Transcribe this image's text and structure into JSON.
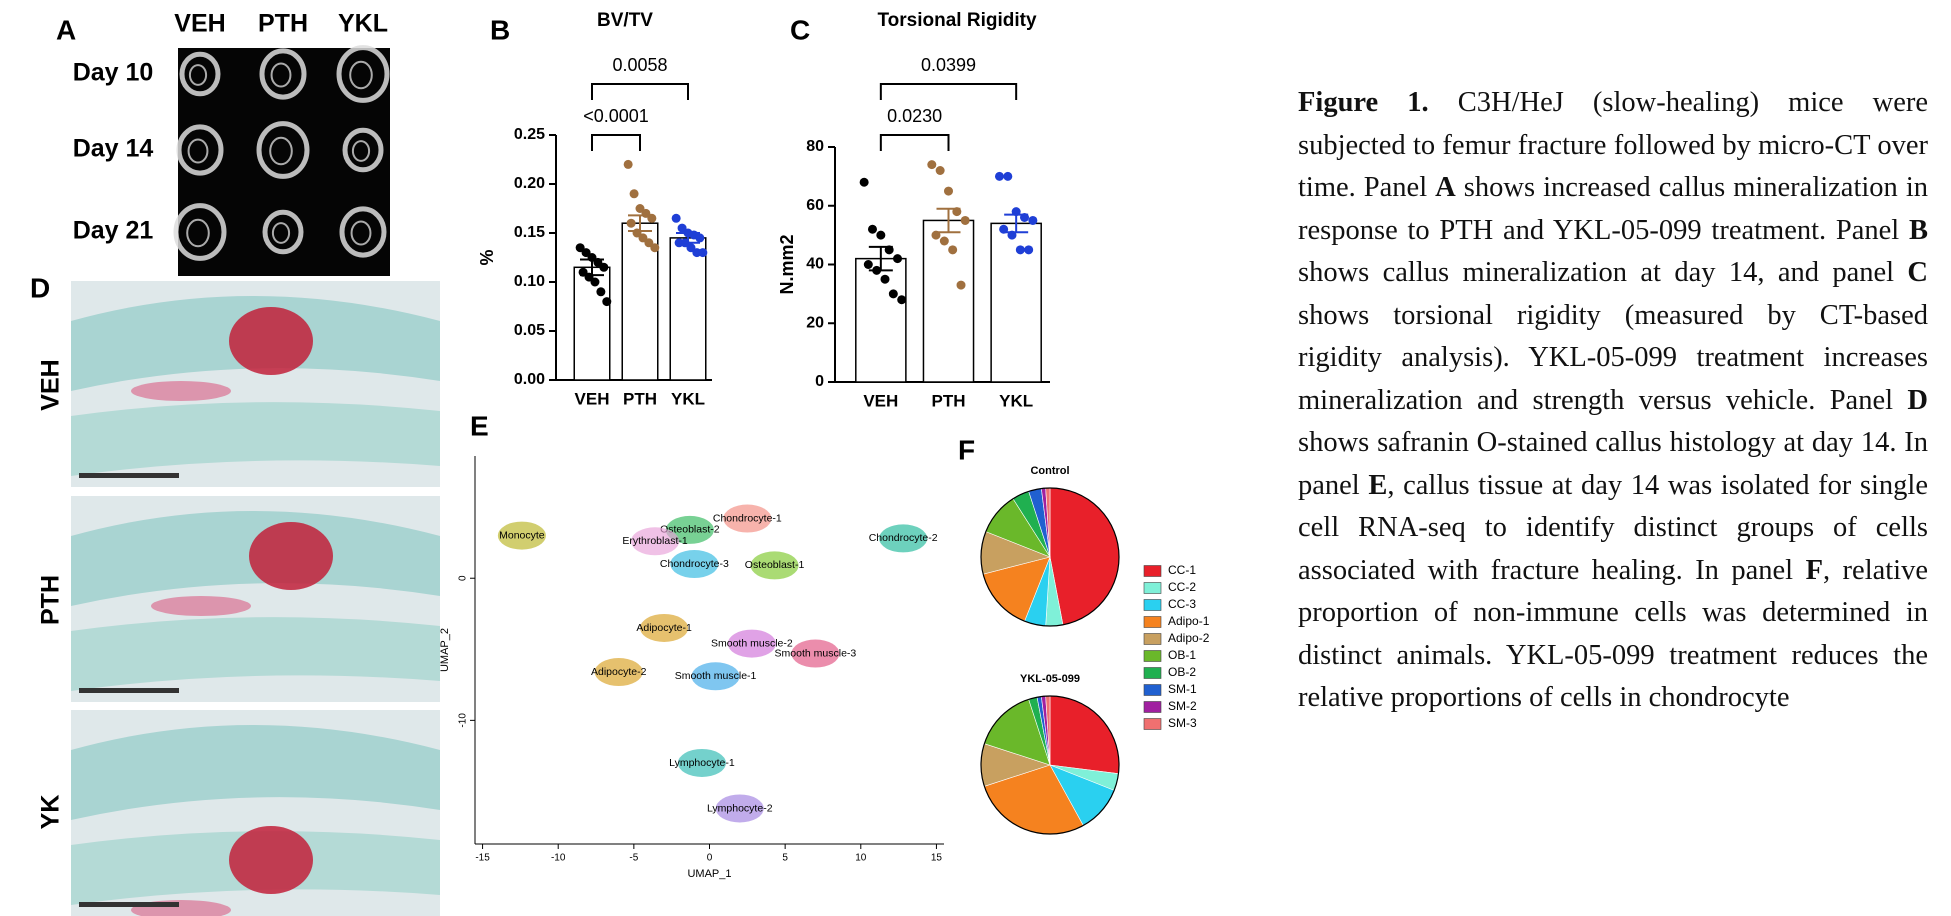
{
  "panel_a": {
    "label": "A",
    "columns": [
      "VEH",
      "PTH",
      "YKL"
    ],
    "rows": [
      "Day 10",
      "Day 14",
      "Day 21"
    ]
  },
  "panel_d": {
    "label": "D",
    "rows": [
      "VEH",
      "PTH",
      "YK"
    ]
  },
  "chart_data": [
    {
      "type": "bar",
      "panel": "B",
      "title": "BV/TV",
      "y_label": "%",
      "categories": [
        "VEH",
        "PTH",
        "YKL"
      ],
      "values": [
        0.115,
        0.16,
        0.145
      ],
      "errors": [
        0.008,
        0.008,
        0.005
      ],
      "colors": [
        "#000000",
        "#a0703f",
        "#1f3fd6"
      ],
      "points": [
        [
          0.135,
          0.13,
          0.125,
          0.12,
          0.115,
          0.11,
          0.105,
          0.1,
          0.09,
          0.08
        ],
        [
          0.22,
          0.19,
          0.175,
          0.17,
          0.165,
          0.16,
          0.15,
          0.145,
          0.14,
          0.135
        ],
        [
          0.165,
          0.155,
          0.15,
          0.148,
          0.145,
          0.14,
          0.14,
          0.135,
          0.13,
          0.13
        ]
      ],
      "ylim": [
        0,
        0.25
      ],
      "yticks": [
        {
          "value": 0,
          "label": "0.00"
        },
        0.05,
        {
          "value": 0.1,
          "label": "0.10"
        },
        0.15,
        {
          "value": 0.2,
          "label": "0.20"
        },
        0.25
      ],
      "annotations": [
        {
          "text": "<0.0001",
          "from": "VEH",
          "to": "PTH"
        },
        {
          "text": "0.0058",
          "from": "VEH",
          "to": "YKL"
        }
      ]
    },
    {
      "type": "bar",
      "panel": "C",
      "title": "Torsional Rigidity",
      "y_label": "N.mm2",
      "categories": [
        "VEH",
        "PTH",
        "YKL"
      ],
      "values": [
        42,
        55,
        54
      ],
      "errors": [
        4,
        4,
        3
      ],
      "colors": [
        "#000000",
        "#a0703f",
        "#1f3fd6"
      ],
      "points": [
        [
          68,
          52,
          50,
          45,
          42,
          40,
          38,
          35,
          30,
          28
        ],
        [
          74,
          72,
          65,
          58,
          55,
          50,
          48,
          45,
          33
        ],
        [
          70,
          70,
          58,
          56,
          55,
          52,
          50,
          45,
          45
        ]
      ],
      "ylim": [
        0,
        80
      ],
      "yticks": [
        0,
        20,
        40,
        60,
        80
      ],
      "annotations": [
        {
          "text": "0.0230",
          "from": "VEH",
          "to": "PTH"
        },
        {
          "text": "0.0399",
          "from": "VEH",
          "to": "YKL"
        }
      ]
    },
    {
      "type": "scatter",
      "panel": "E",
      "x_label": "UMAP_1",
      "y_label": "UMAP_2",
      "labels": [
        "Monocyte",
        "Chondrocyte-1",
        "Osteoblast-2",
        "Erythroblast-1",
        "Chondrocyte-3",
        "Osteoblast-1",
        "Chondrocyte-2",
        "Adipocyte-1",
        "Adipocyte-2",
        "Smooth muscle-2",
        "Smooth muscle-1",
        "Smooth muscle-3",
        "Lymphocyte-1",
        "Lymphocyte-2"
      ],
      "x": [
        -12.4,
        2.5,
        -1.3,
        -3.6,
        -1.0,
        4.3,
        12.8,
        -3.0,
        -6.0,
        2.8,
        0.4,
        7.0,
        -0.5,
        2.0
      ],
      "y": [
        3.0,
        4.2,
        3.4,
        2.6,
        1.0,
        0.9,
        2.8,
        -3.5,
        -6.6,
        -4.6,
        -6.9,
        -5.3,
        -13.0,
        -16.2
      ],
      "colors": [
        "#b8b322",
        "#f28a80",
        "#2fb85a",
        "#e8a0d8",
        "#2eb8e0",
        "#7cc82a",
        "#1fb89a",
        "#d9a020",
        "#d9a020",
        "#d070d8",
        "#3aa8e8",
        "#e05080",
        "#2ab8b0",
        "#a080e0"
      ],
      "xlim": [
        -15.5,
        15.5
      ],
      "ylim": [
        -18.7,
        8.6
      ],
      "xticks": [
        -15,
        -10,
        -5,
        0,
        5,
        10,
        15
      ],
      "yticks": [
        0,
        -10
      ]
    },
    {
      "type": "pie",
      "panel": "F",
      "categories": [
        "CC-1",
        "CC-2",
        "CC-3",
        "Adipo-1",
        "Adipo-2",
        "OB-1",
        "OB-2",
        "SM-1",
        "SM-2",
        "SM-3"
      ],
      "colors": [
        "#e8202a",
        "#7ff0d8",
        "#2ad0f0",
        "#f5821f",
        "#c8a060",
        "#6ab82a",
        "#20b050",
        "#2060d0",
        "#a020a0",
        "#f07070"
      ],
      "series": [
        {
          "name": "Control",
          "values": [
            47,
            4,
            5,
            15,
            10,
            10,
            4,
            3,
            1,
            1
          ]
        },
        {
          "name": "YKL-05-099",
          "values": [
            27,
            4,
            11,
            28,
            10,
            15,
            2,
            1,
            1,
            1
          ]
        }
      ]
    }
  ],
  "caption": [
    {
      "text": "Figure 1.",
      "bold": true
    },
    {
      "text": " C3H/HeJ (slow-healing) mice were subjected to femur fracture followed by micro-CT over time. Panel ",
      "bold": false
    },
    {
      "text": "A",
      "bold": true
    },
    {
      "text": " shows increased callus mineralization in response to PTH and YKL-05-099 treatment. Panel ",
      "bold": false
    },
    {
      "text": "B",
      "bold": true
    },
    {
      "text": " shows callus mineralization at day 14, and panel ",
      "bold": false
    },
    {
      "text": "C",
      "bold": true
    },
    {
      "text": " shows torsional rigidity (measured by CT-based rigidity analysis).  YKL-05-099 treatment increases mineralization and strength versus vehicle. Panel ",
      "bold": false
    },
    {
      "text": "D",
      "bold": true
    },
    {
      "text": " shows safranin O-stained callus histology at day 14. In panel ",
      "bold": false
    },
    {
      "text": "E",
      "bold": true
    },
    {
      "text": ", callus tissue at day 14 was isolated for single cell RNA-seq to identify distinct groups of cells associated with fracture healing. In panel ",
      "bold": false
    },
    {
      "text": "F",
      "bold": true
    },
    {
      "text": ", relative proportion of non-immune cells was determined in distinct animals. YKL-05-099 treatment reduces the relative proportions of cells in chondrocyte",
      "bold": false
    }
  ]
}
